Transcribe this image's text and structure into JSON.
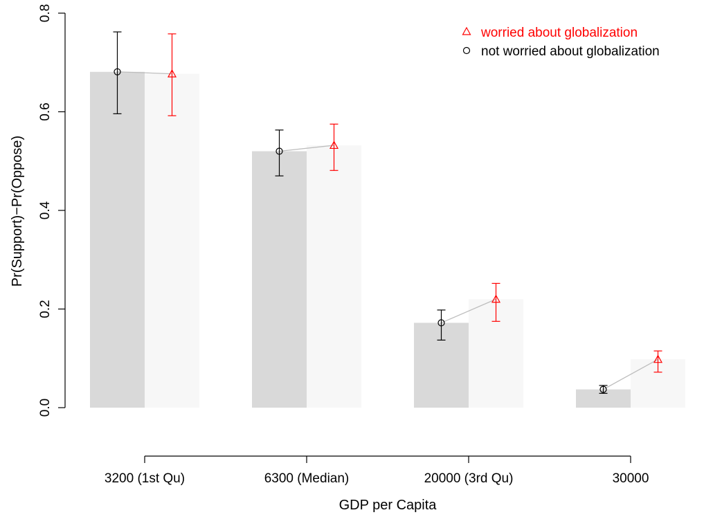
{
  "chart_data": {
    "type": "bar",
    "title": "",
    "xlabel": "GDP per Capita",
    "ylabel": "Pr(Support)−Pr(Oppose)",
    "ylim": [
      0,
      0.8
    ],
    "yticks": [
      "0.0",
      "0.2",
      "0.4",
      "0.6",
      "0.8"
    ],
    "yticks_values": [
      0,
      0.2,
      0.4,
      0.6,
      0.8
    ],
    "categories": [
      "3200 (1st Qu)",
      "6300 (Median)",
      "20000 (3rd Qu)",
      "30000"
    ],
    "grid": false,
    "legend_position": "top-right",
    "series": [
      {
        "name": "not worried about globalization",
        "marker": "circle",
        "color": "#000000",
        "bar_color": "#d9d9d9",
        "values": [
          0.681,
          0.52,
          0.172,
          0.037
        ],
        "lower": [
          0.596,
          0.47,
          0.137,
          0.029
        ],
        "upper": [
          0.762,
          0.563,
          0.198,
          0.045
        ]
      },
      {
        "name": "worried about globalization",
        "marker": "triangle",
        "color": "#ff0000",
        "bar_color": "#f7f7f7",
        "values": [
          0.677,
          0.532,
          0.22,
          0.098
        ],
        "lower": [
          0.592,
          0.481,
          0.175,
          0.072
        ],
        "upper": [
          0.758,
          0.575,
          0.252,
          0.115
        ]
      }
    ],
    "connector_color": "#bdbdbd"
  }
}
